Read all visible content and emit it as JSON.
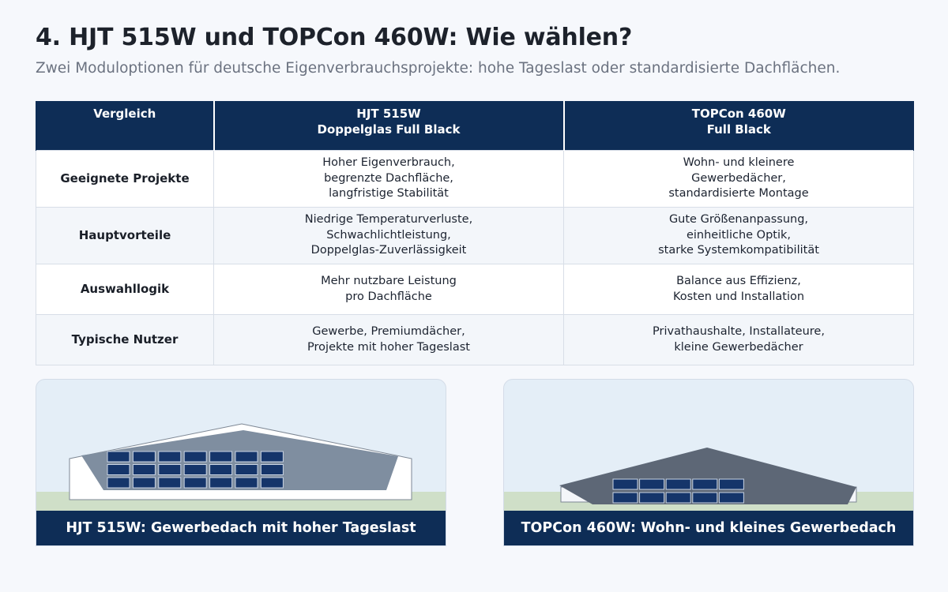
{
  "header": {
    "title": "4. HJT 515W und TOPCon 460W: Wie wählen?",
    "subtitle": "Zwei Moduloptionen für deutsche Eigenverbrauchsprojekte: hohe Tageslast oder standardisierte Dachflächen."
  },
  "table": {
    "columns": [
      "Vergleich",
      "HJT 515W\nDoppelglas Full Black",
      "TOPCon 460W\nFull Black"
    ],
    "rows": [
      [
        "Geeignete Projekte",
        "Hoher Eigenverbrauch,\nbegrenzte Dachfläche,\nlangfristige Stabilität",
        "Wohn- und kleinere\nGewerbedächer,\nstandardisierte Montage"
      ],
      [
        "Hauptvorteile",
        "Niedrige Temperaturverluste,\nSchwachlichtleistung,\nDoppelglas-Zuverlässigkeit",
        "Gute Größenanpassung,\neinheitliche Optik,\nstarke Systemkompatibilität"
      ],
      [
        "Auswahllogik",
        "Mehr nutzbare Leistung\npro Dachfläche",
        "Balance aus Effizienz,\nKosten und Installation"
      ],
      [
        "Typische Nutzer",
        "Gewerbe, Premiumdächer,\nProjekte mit hoher Tageslast",
        "Privathaushalte, Installateure,\nkleine Gewerbedächer"
      ]
    ]
  },
  "cards": {
    "left_caption": "HJT 515W: Gewerbedach mit hoher Tageslast",
    "right_caption": "TOPCon 460W: Wohn- und kleines Gewerbedach"
  },
  "colors": {
    "navy": "#0e2d56",
    "sky": "#e4eef7",
    "grass": "#cfdfc8",
    "panel": "#15356a",
    "roof_left": "#7f8ea0",
    "roof_right": "#5d6776"
  }
}
